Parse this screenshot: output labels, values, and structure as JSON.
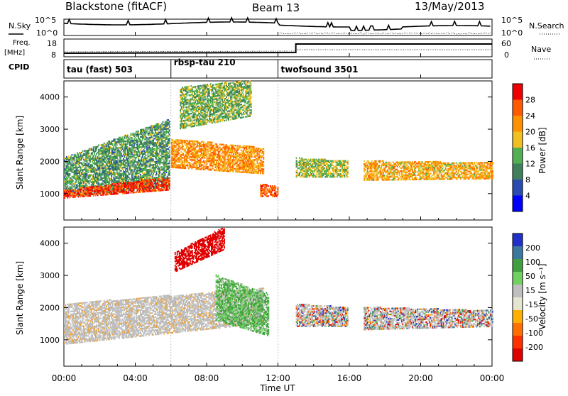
{
  "header": {
    "station": "Blackstone (fitACF)",
    "beam": "Beam 13",
    "date": "13/May/2013"
  },
  "small_panels": {
    "nsky_label": "N.Sky",
    "nsearch_label": "N.Search",
    "noise_ticks": [
      "10^5",
      "10^0"
    ],
    "freq_label_1": "Freq.",
    "freq_label_2": "[MHz]",
    "freq_ticks": [
      "18",
      "8"
    ],
    "nave_label": "Nave",
    "nave_ticks": [
      "60",
      "0"
    ],
    "cpid_label": "CPID"
  },
  "cpid_segments": [
    {
      "label": "tau (fast) 503",
      "start_hour": 0
    },
    {
      "label": "rbsp-tau 210",
      "start_hour": 6
    },
    {
      "label": "twofsound 3501",
      "start_hour": 12
    }
  ],
  "axes": {
    "time_ticks": [
      "00:00",
      "04:00",
      "08:00",
      "12:00",
      "16:00",
      "20:00",
      "00:00"
    ],
    "xlabel": "Time UT",
    "ylabel": "Slant Range [km]",
    "range_ticks": [
      "4000",
      "3000",
      "2000",
      "1000"
    ]
  },
  "colors": {
    "power": [
      "#0000ff",
      "#2a4bb0",
      "#3f7f5c",
      "#52b052",
      "#f0c020",
      "#ff9000",
      "#ff5a00",
      "#ee0000"
    ],
    "velocity": [
      "#2030c8",
      "#3a78a0",
      "#40a040",
      "#70d060",
      "#bfbfbf",
      "#e6e6d0",
      "#ffb000",
      "#ff7000",
      "#ff3000",
      "#e00000"
    ],
    "ground_scatter": "#bfbfbf"
  },
  "chart_data": [
    {
      "type": "heatmap",
      "name": "Power",
      "unit_label": "Power [dB]",
      "x_range_hours": [
        0,
        24
      ],
      "y_range_km": [
        180,
        4500
      ],
      "colorbar_ticks": [
        "28",
        "24",
        "20",
        "16",
        "12",
        "8",
        "4"
      ],
      "colorbar_range": [
        0,
        32
      ],
      "regions": [
        {
          "t0": 0.0,
          "t1": 5.9,
          "r_low_start": 900,
          "r_low_end": 1200,
          "r_high_start": 2100,
          "r_high_end": 3300,
          "level": 12
        },
        {
          "t0": 0.0,
          "t1": 5.9,
          "r_low_start": 850,
          "r_low_end": 1100,
          "r_high_start": 1100,
          "r_high_end": 1500,
          "level": 28
        },
        {
          "t0": 6.0,
          "t1": 11.2,
          "r_low_start": 1800,
          "r_low_end": 1600,
          "r_high_start": 2700,
          "r_high_end": 2400,
          "level": 22
        },
        {
          "t0": 6.5,
          "t1": 10.5,
          "r_low_start": 3000,
          "r_low_end": 3400,
          "r_high_start": 4300,
          "r_high_end": 4500,
          "level": 14
        },
        {
          "t0": 11.0,
          "t1": 12.0,
          "r_low_start": 900,
          "r_low_end": 900,
          "r_high_start": 1300,
          "r_high_end": 1200,
          "level": 26
        },
        {
          "t0": 13.0,
          "t1": 15.9,
          "r_low_start": 1500,
          "r_low_end": 1500,
          "r_high_start": 2100,
          "r_high_end": 2000,
          "level": 16
        },
        {
          "t0": 16.8,
          "t1": 24.0,
          "r_low_start": 1400,
          "r_low_end": 1450,
          "r_high_start": 2000,
          "r_high_end": 1950,
          "level": 20
        }
      ]
    },
    {
      "type": "heatmap",
      "name": "Velocity",
      "unit_label": "Velocity [m s⁻¹]",
      "x_range_hours": [
        0,
        24
      ],
      "y_range_km": [
        180,
        4500
      ],
      "colorbar_ticks": [
        "200",
        "100",
        "50",
        "15",
        "-15",
        "-50",
        "-100",
        "-200"
      ],
      "regions": [
        {
          "t0": 0.0,
          "t1": 11.2,
          "r_low_start": 850,
          "r_low_end": 1500,
          "r_high_start": 2100,
          "r_high_end": 2600,
          "level": "ground"
        },
        {
          "t0": 6.2,
          "t1": 9.0,
          "r_low_start": 3100,
          "r_low_end": 3800,
          "r_high_start": 3700,
          "r_high_end": 4500,
          "level": -200
        },
        {
          "t0": 8.5,
          "t1": 11.5,
          "r_low_start": 1600,
          "r_low_end": 1100,
          "r_high_start": 3000,
          "r_high_end": 2400,
          "level": 30
        },
        {
          "t0": 13.0,
          "t1": 15.9,
          "r_low_start": 1400,
          "r_low_end": 1400,
          "r_high_start": 2100,
          "r_high_end": 2000,
          "level": "mixed"
        },
        {
          "t0": 16.8,
          "t1": 24.0,
          "r_low_start": 1300,
          "r_low_end": 1400,
          "r_high_start": 2000,
          "r_high_end": 1900,
          "level": "mixed"
        }
      ]
    }
  ]
}
